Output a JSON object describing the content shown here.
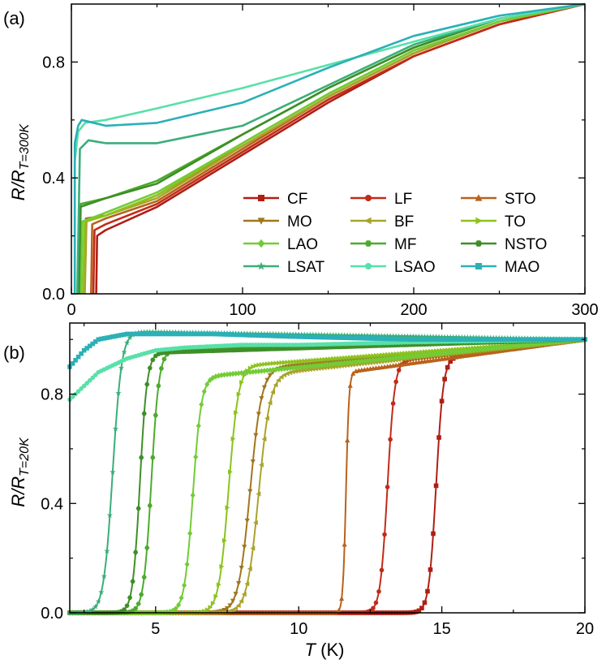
{
  "colors": {
    "CF": "#b01e14",
    "LF": "#c12b18",
    "STO": "#b8621b",
    "MO": "#a0761e",
    "BF": "#a9a32a",
    "TO": "#8cc21e",
    "LAO": "#72cc36",
    "MF": "#4cab2c",
    "NSTO": "#3f8e27",
    "LSAT": "#3aae78",
    "LSAO": "#58e0a8",
    "MAO": "#2bb0b7"
  },
  "legend": [
    {
      "name": "CF",
      "marker": "square"
    },
    {
      "name": "LF",
      "marker": "circle"
    },
    {
      "name": "STO",
      "marker": "triangle-up"
    },
    {
      "name": "MO",
      "marker": "triangle-down"
    },
    {
      "name": "BF",
      "marker": "triangle-left"
    },
    {
      "name": "TO",
      "marker": "triangle-right"
    },
    {
      "name": "LAO",
      "marker": "diamond"
    },
    {
      "name": "MF",
      "marker": "hexagon"
    },
    {
      "name": "NSTO",
      "marker": "hexagon"
    },
    {
      "name": "LSAT",
      "marker": "star"
    },
    {
      "name": "LSAO",
      "marker": "circle"
    },
    {
      "name": "MAO",
      "marker": "square"
    }
  ],
  "chart_data": [
    {
      "panel": "(a)",
      "type": "line",
      "xlabel": "",
      "ylabel_main": "R/R",
      "ylabel_sub": "T=300K",
      "xlim": [
        0,
        300
      ],
      "ylim": [
        0,
        1.0
      ],
      "xticks": [
        0,
        100,
        200,
        300
      ],
      "yticks": [
        0.0,
        0.4,
        0.8
      ],
      "yticklabels": [
        "0.0",
        "0.4",
        "0.8"
      ],
      "legend_position": "lower-right",
      "series": [
        {
          "name": "CF",
          "x": [
            14.5,
            15,
            20,
            50,
            100,
            150,
            200,
            250,
            300
          ],
          "y": [
            0,
            0.2,
            0.22,
            0.3,
            0.48,
            0.66,
            0.82,
            0.93,
            1.0
          ]
        },
        {
          "name": "LF",
          "x": [
            12.8,
            13.5,
            20,
            50,
            100,
            150,
            200,
            250,
            300
          ],
          "y": [
            0,
            0.22,
            0.24,
            0.31,
            0.49,
            0.67,
            0.82,
            0.93,
            1.0
          ]
        },
        {
          "name": "STO",
          "x": [
            11.5,
            12.2,
            20,
            50,
            100,
            150,
            200,
            250,
            300
          ],
          "y": [
            0,
            0.24,
            0.26,
            0.32,
            0.5,
            0.68,
            0.83,
            0.94,
            1.0
          ]
        },
        {
          "name": "MO",
          "x": [
            7.5,
            8.5,
            20,
            50,
            100,
            150,
            200,
            250,
            300
          ],
          "y": [
            0,
            0.26,
            0.27,
            0.34,
            0.51,
            0.68,
            0.83,
            0.94,
            1.0
          ]
        },
        {
          "name": "BF",
          "x": [
            7.8,
            8.8,
            20,
            50,
            100,
            150,
            200,
            250,
            300
          ],
          "y": [
            0,
            0.25,
            0.27,
            0.33,
            0.51,
            0.68,
            0.83,
            0.94,
            1.0
          ]
        },
        {
          "name": "TO",
          "x": [
            6.8,
            7.8,
            20,
            50,
            100,
            150,
            200,
            250,
            300
          ],
          "y": [
            0,
            0.25,
            0.27,
            0.34,
            0.52,
            0.69,
            0.84,
            0.94,
            1.0
          ]
        },
        {
          "name": "LAO",
          "x": [
            5.6,
            6.5,
            20,
            50,
            100,
            150,
            200,
            250,
            300
          ],
          "y": [
            0,
            0.25,
            0.28,
            0.35,
            0.52,
            0.69,
            0.84,
            0.94,
            1.0
          ]
        },
        {
          "name": "MF",
          "x": [
            4.5,
            5.5,
            20,
            50,
            100,
            150,
            200,
            250,
            300
          ],
          "y": [
            0,
            0.31,
            0.33,
            0.39,
            0.55,
            0.71,
            0.85,
            0.95,
            1.0
          ]
        },
        {
          "name": "NSTO",
          "x": [
            4.2,
            5.2,
            20,
            50,
            100,
            150,
            200,
            250,
            300
          ],
          "y": [
            0,
            0.3,
            0.33,
            0.38,
            0.55,
            0.71,
            0.85,
            0.95,
            1.0
          ]
        },
        {
          "name": "LSAT",
          "x": [
            3.5,
            5,
            10,
            20,
            50,
            100,
            150,
            200,
            250,
            300
          ],
          "y": [
            0.02,
            0.5,
            0.53,
            0.52,
            0.52,
            0.58,
            0.72,
            0.86,
            0.95,
            1.0
          ]
        },
        {
          "name": "LSAO",
          "x": [
            2,
            4,
            8,
            20,
            50,
            100,
            150,
            200,
            250,
            300
          ],
          "y": [
            0.46,
            0.56,
            0.59,
            0.6,
            0.64,
            0.71,
            0.79,
            0.87,
            0.95,
            1.0
          ]
        },
        {
          "name": "MAO",
          "x": [
            2,
            4,
            6,
            20,
            50,
            100,
            150,
            200,
            250,
            300
          ],
          "y": [
            0.52,
            0.58,
            0.6,
            0.58,
            0.59,
            0.66,
            0.78,
            0.89,
            0.96,
            1.0
          ]
        }
      ]
    },
    {
      "panel": "(b)",
      "type": "line",
      "xlabel_main": "T",
      "xlabel_unit": " (K)",
      "ylabel_main": "R/R",
      "ylabel_sub": "T=20K",
      "xlim": [
        2,
        20
      ],
      "ylim": [
        0,
        1.06
      ],
      "xticks": [
        5,
        10,
        15,
        20
      ],
      "yticks": [
        0.0,
        0.4,
        0.8
      ],
      "yticklabels": [
        "0.0",
        "0.4",
        "0.8"
      ],
      "series": [
        {
          "name": "CF",
          "tc": 14.8,
          "w": 0.28,
          "plateau": 0.93
        },
        {
          "name": "LF",
          "tc": 13.1,
          "w": 0.28,
          "plateau": 0.92
        },
        {
          "name": "STO",
          "tc": 11.65,
          "w": 0.12,
          "plateau": 0.88
        },
        {
          "name": "MO",
          "tc": 8.3,
          "w": 0.45,
          "plateau": 0.89
        },
        {
          "name": "BF",
          "tc": 8.6,
          "w": 0.45,
          "plateau": 0.87
        },
        {
          "name": "TO",
          "tc": 7.55,
          "w": 0.38,
          "plateau": 0.9
        },
        {
          "name": "LAO",
          "tc": 6.3,
          "w": 0.33,
          "plateau": 0.86
        },
        {
          "name": "MF",
          "tc": 4.85,
          "w": 0.3,
          "plateau": 0.96
        },
        {
          "name": "NSTO",
          "tc": 4.45,
          "w": 0.28,
          "plateau": 0.95
        },
        {
          "name": "LSAT",
          "tc": 3.5,
          "w": 0.35,
          "plateau": 1.03
        },
        {
          "name": "LSAO",
          "start": 0.78,
          "x": [
            2,
            3,
            4,
            5,
            6,
            8,
            10,
            14,
            20
          ],
          "y": [
            0.78,
            0.88,
            0.93,
            0.96,
            0.97,
            0.98,
            0.98,
            0.99,
            1.0
          ]
        },
        {
          "name": "MAO",
          "start": 0.9,
          "x": [
            2,
            2.5,
            3,
            4,
            5,
            7,
            10,
            14,
            20
          ],
          "y": [
            0.9,
            0.96,
            1.0,
            1.02,
            1.02,
            1.02,
            1.01,
            1.0,
            1.0
          ]
        }
      ]
    }
  ]
}
